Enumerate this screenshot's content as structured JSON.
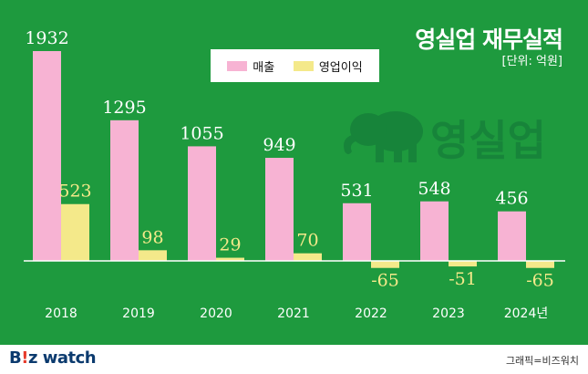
{
  "title": "영실업 재무실적",
  "unit": "[단위: 억원]",
  "legend": {
    "revenue": "매출",
    "operating_profit": "영업이익"
  },
  "watermark": "영실업",
  "footer": {
    "brand_prefix": "B",
    "brand_dot": "!",
    "brand_suffix": "z watch",
    "credit": "그래픽=비즈워치"
  },
  "colors": {
    "background": "#1e9a3e",
    "revenue": "#f7b3d3",
    "operating_profit": "#f4e98a"
  },
  "chart_data": {
    "type": "bar",
    "categories": [
      "2018",
      "2019",
      "2020",
      "2021",
      "2022",
      "2023",
      "2024년"
    ],
    "series": [
      {
        "name": "매출",
        "values": [
          1932,
          1295,
          1055,
          949,
          531,
          548,
          456
        ]
      },
      {
        "name": "영업이익",
        "values": [
          523,
          98,
          29,
          70,
          -65,
          -51,
          -65
        ]
      }
    ],
    "value_labels": {
      "revenue": [
        "1932",
        "1295",
        "1055",
        "949",
        "531",
        "548",
        "456"
      ],
      "operating_profit": [
        "523",
        "98",
        "29",
        "70",
        "-65",
        "-51",
        "-65"
      ]
    },
    "ylim": [
      -120,
      2000
    ],
    "grid": false,
    "legend_position": "top-center"
  }
}
